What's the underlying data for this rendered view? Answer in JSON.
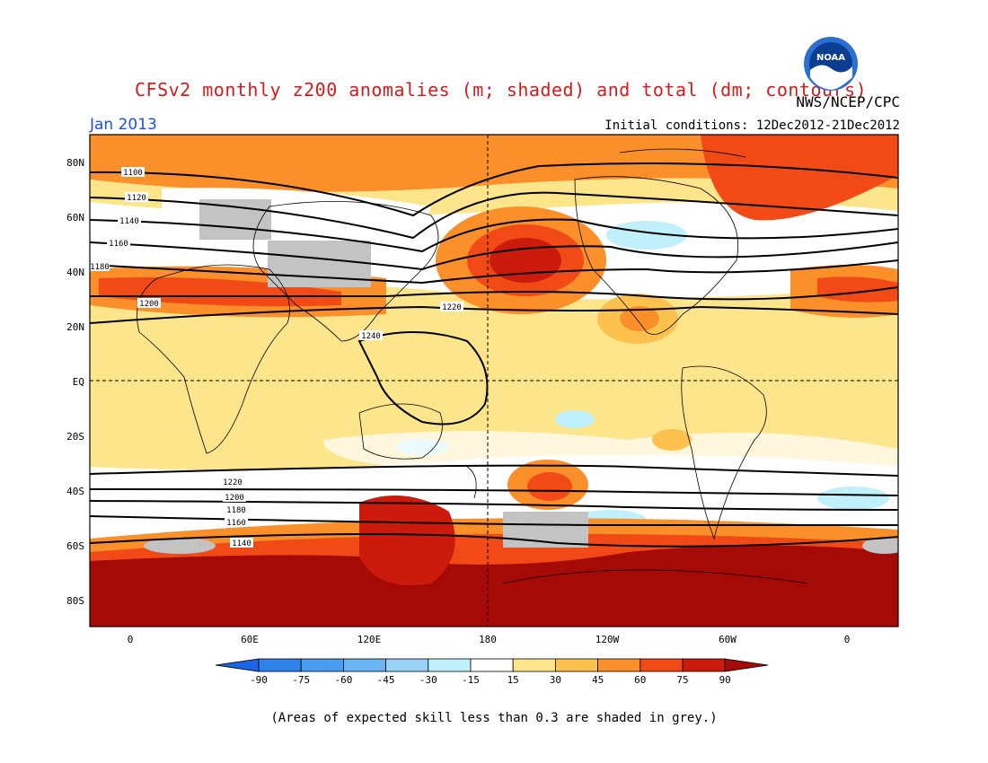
{
  "header": {
    "title": "CFSv2 monthly z200 anomalies (m; shaded) and total (dm; contours)",
    "agency": "NWS/NCEP/CPC",
    "period": "Jan 2013",
    "initial_conditions": "Initial conditions: 12Dec2012-21Dec2012",
    "logo_text": "NOAA"
  },
  "map": {
    "lat_labels": [
      "80N",
      "60N",
      "40N",
      "20N",
      "EQ",
      "20S",
      "40S",
      "60S",
      "80S"
    ],
    "lon_labels": [
      "0",
      "60E",
      "120E",
      "180",
      "120W",
      "60W",
      "0"
    ],
    "contour_labels": [
      "1100",
      "1120",
      "1140",
      "1160",
      "1180",
      "1200",
      "1220",
      "1240",
      "1180",
      "1200",
      "1220",
      "1140",
      "1160"
    ],
    "grey_note": "(Areas of expected skill less than 0.3 are shaded in grey.)"
  },
  "colorbar": {
    "ticks": [
      "-90",
      "-75",
      "-60",
      "-45",
      "-30",
      "-15",
      "15",
      "30",
      "45",
      "60",
      "75",
      "90"
    ],
    "colors": [
      "#1a66e6",
      "#2e82ea",
      "#4a9cf0",
      "#6cb3f3",
      "#98d2f6",
      "#bff0fb",
      "#ffffff",
      "#fde58c",
      "#fcc24d",
      "#fb8f2a",
      "#f24a16",
      "#cc1a0c",
      "#a50a06"
    ]
  },
  "colors": {
    "title": "#d21c1c",
    "period": "#1f4fd8",
    "grey_mask": "#c3c3c3"
  }
}
